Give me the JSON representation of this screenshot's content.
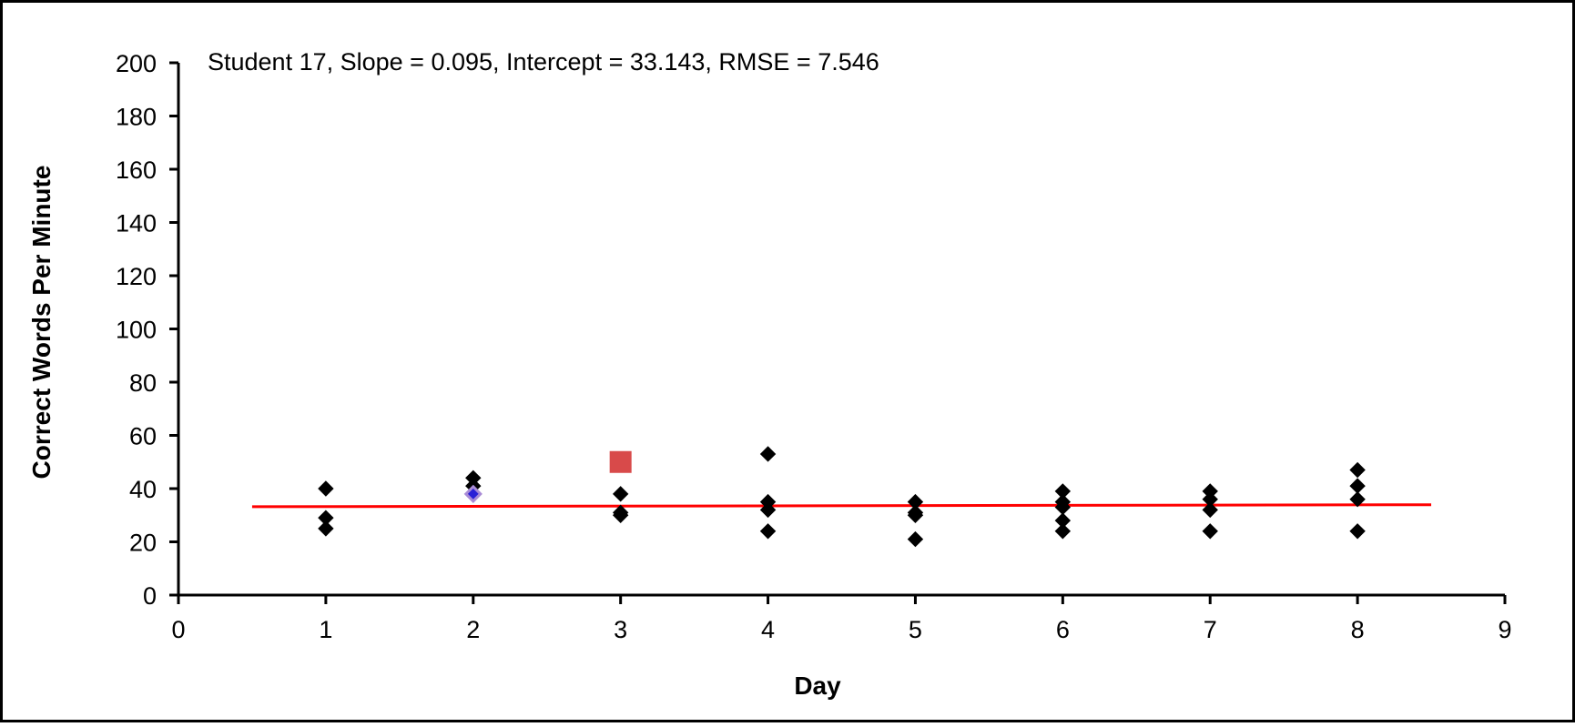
{
  "chart_data": {
    "type": "scatter",
    "annotation": "Student 17, Slope = 0.095, Intercept = 33.143, RMSE = 7.546",
    "xlabel": "Day",
    "ylabel": "Correct Words Per Minute",
    "xlim": [
      0,
      9
    ],
    "ylim": [
      0,
      200
    ],
    "x_ticks": [
      "0",
      "1",
      "2",
      "3",
      "4",
      "5",
      "6",
      "7",
      "8",
      "9"
    ],
    "y_ticks": [
      "0",
      "20",
      "40",
      "60",
      "80",
      "100",
      "120",
      "140",
      "160",
      "180",
      "200"
    ],
    "grid": false,
    "legend": "none",
    "series": [
      {
        "marker": "diamond",
        "color": "#000000",
        "points": [
          [
            1,
            40
          ],
          [
            1,
            29
          ],
          [
            1,
            25
          ],
          [
            2,
            44
          ],
          [
            2,
            41
          ],
          [
            3,
            38
          ],
          [
            3,
            31
          ],
          [
            3,
            30
          ],
          [
            4,
            53
          ],
          [
            4,
            35
          ],
          [
            4,
            32
          ],
          [
            4,
            24
          ],
          [
            5,
            35
          ],
          [
            5,
            31
          ],
          [
            5,
            30
          ],
          [
            5,
            21
          ],
          [
            6,
            39
          ],
          [
            6,
            35
          ],
          [
            6,
            33
          ],
          [
            6,
            28
          ],
          [
            6,
            24
          ],
          [
            7,
            39
          ],
          [
            7,
            36
          ],
          [
            7,
            32
          ],
          [
            7,
            24
          ],
          [
            8,
            47
          ],
          [
            8,
            41
          ],
          [
            8,
            36
          ],
          [
            8,
            24
          ]
        ]
      },
      {
        "marker": "diamond",
        "color": "#2a1fd6",
        "outline": "#a98bd6",
        "points": [
          [
            2,
            38
          ]
        ]
      },
      {
        "marker": "square",
        "color": "#d84a4a",
        "points": [
          [
            3,
            50
          ]
        ]
      }
    ],
    "trend_line": {
      "color": "#ff0000",
      "slope": 0.095,
      "intercept": 33.143,
      "x_range": [
        0.5,
        8.5
      ]
    }
  }
}
